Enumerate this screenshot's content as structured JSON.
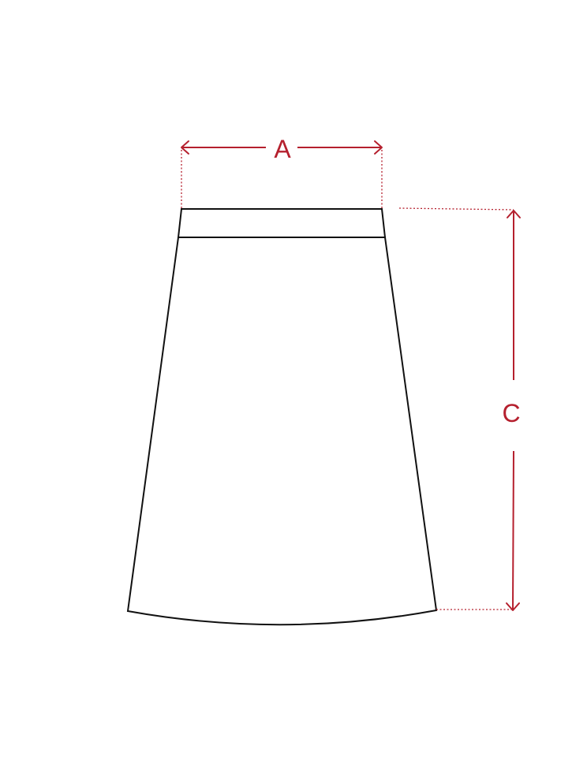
{
  "diagram": {
    "subject": "skirt",
    "colors": {
      "outline": "#111111",
      "dimension": "#b5202e",
      "background": "#ffffff"
    },
    "dimensions": [
      {
        "key": "waist_width",
        "label": "A",
        "orientation": "horizontal"
      },
      {
        "key": "length",
        "label": "C",
        "orientation": "vertical"
      }
    ]
  }
}
